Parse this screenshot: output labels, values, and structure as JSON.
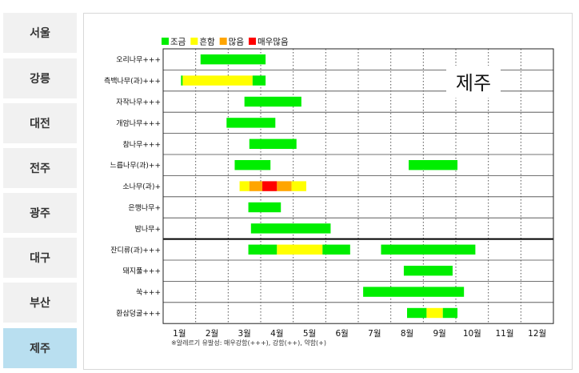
{
  "sidebar": {
    "cities": [
      "서울",
      "강릉",
      "대전",
      "전주",
      "광주",
      "대구",
      "부산",
      "제주"
    ],
    "active": "제주"
  },
  "legend": [
    {
      "label": "조금",
      "color": "#00ee00"
    },
    {
      "label": "흔함",
      "color": "#ffff00"
    },
    {
      "label": "많음",
      "color": "#ffa500"
    },
    {
      "label": "매우많음",
      "color": "#ff0000"
    }
  ],
  "region_label": "제주",
  "months": [
    "1월",
    "2월",
    "3월",
    "4월",
    "5월",
    "6월",
    "7월",
    "8월",
    "9월",
    "10월",
    "11월",
    "12월"
  ],
  "footnote": "※알레르기 유발성: 매우강함(+++), 강함(++), 약함(+)",
  "chart_data": {
    "type": "gantt",
    "x_unit": "month",
    "xlim": [
      1,
      13
    ],
    "level_colors": {
      "조금": "#00ee00",
      "흔함": "#ffff00",
      "많음": "#ffa500",
      "매우많음": "#ff0000"
    },
    "groups": [
      "tree",
      "grass"
    ],
    "rows": [
      {
        "label": "오리나무+++",
        "group": "tree",
        "segments": [
          {
            "start": 2.15,
            "end": 4.15,
            "level": "조금"
          }
        ]
      },
      {
        "label": "측백나무(과)+++",
        "group": "tree",
        "segments": [
          {
            "start": 1.55,
            "end": 1.6,
            "level": "조금"
          },
          {
            "start": 1.6,
            "end": 3.75,
            "level": "흔함"
          },
          {
            "start": 3.75,
            "end": 4.15,
            "level": "조금"
          }
        ]
      },
      {
        "label": "자작나무+++",
        "group": "tree",
        "segments": [
          {
            "start": 3.5,
            "end": 5.25,
            "level": "조금"
          }
        ]
      },
      {
        "label": "개암나무+++",
        "group": "tree",
        "segments": [
          {
            "start": 2.95,
            "end": 4.45,
            "level": "조금"
          }
        ]
      },
      {
        "label": "참나무+++",
        "group": "tree",
        "segments": [
          {
            "start": 3.65,
            "end": 5.1,
            "level": "조금"
          }
        ]
      },
      {
        "label": "느릅나무(과)++",
        "group": "tree",
        "segments": [
          {
            "start": 3.2,
            "end": 4.3,
            "level": "조금"
          },
          {
            "start": 8.55,
            "end": 10.05,
            "level": "조금"
          }
        ]
      },
      {
        "label": "소나무(과)+",
        "group": "tree",
        "segments": [
          {
            "start": 3.35,
            "end": 3.65,
            "level": "흔함"
          },
          {
            "start": 3.65,
            "end": 4.05,
            "level": "많음"
          },
          {
            "start": 4.05,
            "end": 4.5,
            "level": "매우많음"
          },
          {
            "start": 4.5,
            "end": 4.95,
            "level": "많음"
          },
          {
            "start": 4.95,
            "end": 5.4,
            "level": "흔함"
          }
        ]
      },
      {
        "label": "은행나무+",
        "group": "tree",
        "segments": [
          {
            "start": 3.62,
            "end": 4.62,
            "level": "조금"
          }
        ]
      },
      {
        "label": "밤나무+",
        "group": "tree",
        "segments": [
          {
            "start": 3.7,
            "end": 6.15,
            "level": "조금"
          }
        ]
      },
      {
        "label": "잔디류(과)+++",
        "group": "grass",
        "segments": [
          {
            "start": 3.62,
            "end": 4.5,
            "level": "조금"
          },
          {
            "start": 4.5,
            "end": 5.9,
            "level": "흔함"
          },
          {
            "start": 5.9,
            "end": 6.75,
            "level": "조금"
          },
          {
            "start": 7.7,
            "end": 10.6,
            "level": "조금"
          }
        ]
      },
      {
        "label": "돼지풀+++",
        "group": "grass",
        "segments": [
          {
            "start": 8.4,
            "end": 9.9,
            "level": "조금"
          }
        ]
      },
      {
        "label": "쑥+++",
        "group": "grass",
        "segments": [
          {
            "start": 7.15,
            "end": 10.25,
            "level": "조금"
          }
        ]
      },
      {
        "label": "환삼덩굴+++",
        "group": "grass",
        "segments": [
          {
            "start": 8.5,
            "end": 9.1,
            "level": "조금"
          },
          {
            "start": 9.1,
            "end": 9.6,
            "level": "흔함"
          },
          {
            "start": 9.6,
            "end": 10.05,
            "level": "조금"
          }
        ]
      }
    ]
  }
}
